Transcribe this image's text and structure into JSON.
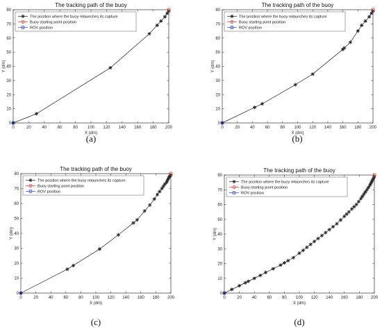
{
  "chart_data": [
    {
      "type": "line",
      "panel_label": "(a)",
      "title": "The tracking path of the buoy",
      "xlabel": "X (dm)",
      "ylabel": "Y (dm)",
      "xlim": [
        0,
        200
      ],
      "ylim": [
        0,
        80
      ],
      "xticks": [
        0,
        20,
        40,
        60,
        80,
        100,
        120,
        140,
        160,
        180,
        200
      ],
      "yticks": [
        0,
        10,
        20,
        30,
        40,
        50,
        60,
        70,
        80
      ],
      "grid": false,
      "legend_position": "top-left",
      "series": [
        {
          "name": "The position where the buoy relaunches its capture",
          "marker": "star",
          "color": "#222222",
          "x": [
            0,
            30,
            125,
            175,
            185,
            190,
            195,
            198,
            200
          ],
          "y": [
            0,
            6.5,
            39,
            63,
            69,
            72,
            75,
            77.5,
            79
          ]
        },
        {
          "name": "Buoy starting point position",
          "marker": "circle",
          "color": "#e03030",
          "x": [
            200
          ],
          "y": [
            80
          ]
        },
        {
          "name": "ROV position",
          "marker": "square",
          "color": "#3344cc",
          "x": [
            0
          ],
          "y": [
            0
          ]
        }
      ]
    },
    {
      "type": "line",
      "panel_label": "(b)",
      "title": "The tracking path of the buoy",
      "xlabel": "X (dm)",
      "ylabel": "Y (dm)",
      "xlim": [
        0,
        200
      ],
      "ylim": [
        0,
        80
      ],
      "xticks": [
        0,
        20,
        40,
        60,
        80,
        100,
        120,
        140,
        160,
        180,
        200
      ],
      "yticks": [
        0,
        10,
        20,
        30,
        40,
        50,
        60,
        70,
        80
      ],
      "grid": false,
      "legend_position": "top-left",
      "series": [
        {
          "name": "The position where the buoy relaunches its capture",
          "marker": "star",
          "color": "#222222",
          "x": [
            0,
            43,
            53,
            97,
            120,
            160,
            162,
            170,
            180,
            185,
            190,
            195,
            198,
            200
          ],
          "y": [
            0,
            11,
            13.5,
            27,
            34.5,
            52,
            53,
            57,
            65,
            69,
            72,
            75,
            77.5,
            79
          ]
        },
        {
          "name": "Buoy starting point position",
          "marker": "circle",
          "color": "#e03030",
          "x": [
            200
          ],
          "y": [
            80
          ]
        },
        {
          "name": "ROV position",
          "marker": "square",
          "color": "#3344cc",
          "x": [
            0
          ],
          "y": [
            0
          ]
        }
      ]
    },
    {
      "type": "line",
      "panel_label": "(c)",
      "title": "The tracking path of the buoy",
      "xlabel": "X (dm)",
      "ylabel": "Y (dm)",
      "xlim": [
        0,
        200
      ],
      "ylim": [
        0,
        80
      ],
      "xticks": [
        0,
        20,
        40,
        60,
        80,
        100,
        120,
        140,
        160,
        180,
        200
      ],
      "yticks": [
        0,
        10,
        20,
        30,
        40,
        50,
        60,
        70,
        80
      ],
      "grid": false,
      "legend_position": "top-left",
      "series": [
        {
          "name": "The position where the buoy relaunches its capture",
          "marker": "star",
          "color": "#222222",
          "x": [
            0,
            62,
            70,
            105,
            130,
            150,
            155,
            165,
            172,
            178,
            182,
            185,
            188,
            190,
            192,
            194,
            195,
            196,
            197,
            198,
            199,
            200
          ],
          "y": [
            0,
            16,
            18.5,
            29.5,
            39,
            47,
            49,
            55,
            59,
            63,
            66,
            68,
            70,
            71.5,
            73,
            74,
            75,
            76,
            77,
            78,
            78.5,
            79
          ]
        },
        {
          "name": "Buoy starting point position",
          "marker": "circle",
          "color": "#e03030",
          "x": [
            200
          ],
          "y": [
            80
          ]
        },
        {
          "name": "ROV position",
          "marker": "square",
          "color": "#3344cc",
          "x": [
            0
          ],
          "y": [
            0
          ]
        }
      ]
    },
    {
      "type": "line",
      "panel_label": "(d)",
      "title": "The tracking path of the buoy",
      "xlabel": "X (dm)",
      "ylabel": "Y (dm)",
      "xlim": [
        0,
        200
      ],
      "ylim": [
        0,
        80
      ],
      "xticks": [
        0,
        20,
        40,
        60,
        80,
        100,
        120,
        140,
        160,
        180,
        200
      ],
      "yticks": [
        0,
        10,
        20,
        30,
        40,
        50,
        60,
        70,
        80
      ],
      "grid": false,
      "legend_position": "top-left",
      "series": [
        {
          "name": "The position where the buoy relaunches its capture",
          "marker": "star",
          "color": "#222222",
          "x": [
            0,
            10,
            20,
            28,
            32,
            40,
            48,
            55,
            65,
            75,
            80,
            85,
            92,
            100,
            105,
            110,
            115,
            120,
            125,
            130,
            135,
            140,
            145,
            150,
            155,
            160,
            163,
            166,
            170,
            173,
            176,
            179,
            182,
            184,
            186,
            188,
            190,
            192,
            194,
            195,
            196,
            197,
            198,
            199,
            200
          ],
          "y": [
            0,
            2.5,
            5,
            7,
            8,
            10,
            12,
            14,
            16.5,
            19,
            20.5,
            22,
            24,
            27,
            29,
            31,
            33,
            35,
            37,
            39,
            41,
            43,
            45,
            47,
            49.5,
            52,
            53.5,
            55,
            57,
            58.5,
            60,
            62,
            64,
            65.5,
            67,
            68.5,
            70,
            71.5,
            73,
            74,
            75,
            76,
            77,
            78,
            79
          ]
        },
        {
          "name": "Buoy starting point position",
          "marker": "circle",
          "color": "#e03030",
          "x": [
            200
          ],
          "y": [
            80
          ]
        },
        {
          "name": "ROV position",
          "marker": "square",
          "color": "#3344cc",
          "x": [
            0
          ],
          "y": [
            0
          ]
        }
      ]
    }
  ]
}
